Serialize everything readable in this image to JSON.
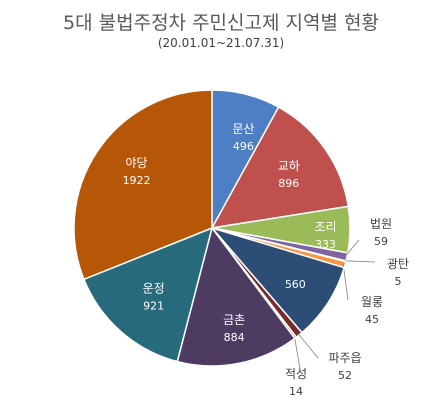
{
  "chart_data": {
    "type": "pie",
    "title": "5대 불법주정차 주민신고제 지역별 현황",
    "subtitle": "(20.01.01~21.07.31)",
    "slices": [
      {
        "label": "문산",
        "value": 496,
        "color": "#4E7FC4"
      },
      {
        "label": "교하",
        "value": 896,
        "color": "#C0504D"
      },
      {
        "label": "조리",
        "value": 333,
        "color": "#9BBB59"
      },
      {
        "label": "법원",
        "value": 59,
        "color": "#8064A2"
      },
      {
        "label": "광탄",
        "value": 5,
        "color": "#4BACC6"
      },
      {
        "label": "월롱",
        "value": 45,
        "color": "#F79646"
      },
      {
        "label": "",
        "value": 560,
        "color": "#2C4D75"
      },
      {
        "label": "파주읍",
        "value": 52,
        "color": "#772C2A"
      },
      {
        "label": "적성",
        "value": 14,
        "color": "#5F7530"
      },
      {
        "label": "금촌",
        "value": 884,
        "color": "#4D3B62"
      },
      {
        "label": "운정",
        "value": 921,
        "color": "#276A7C"
      },
      {
        "label": "야당",
        "value": 1922,
        "color": "#B65708"
      }
    ]
  }
}
